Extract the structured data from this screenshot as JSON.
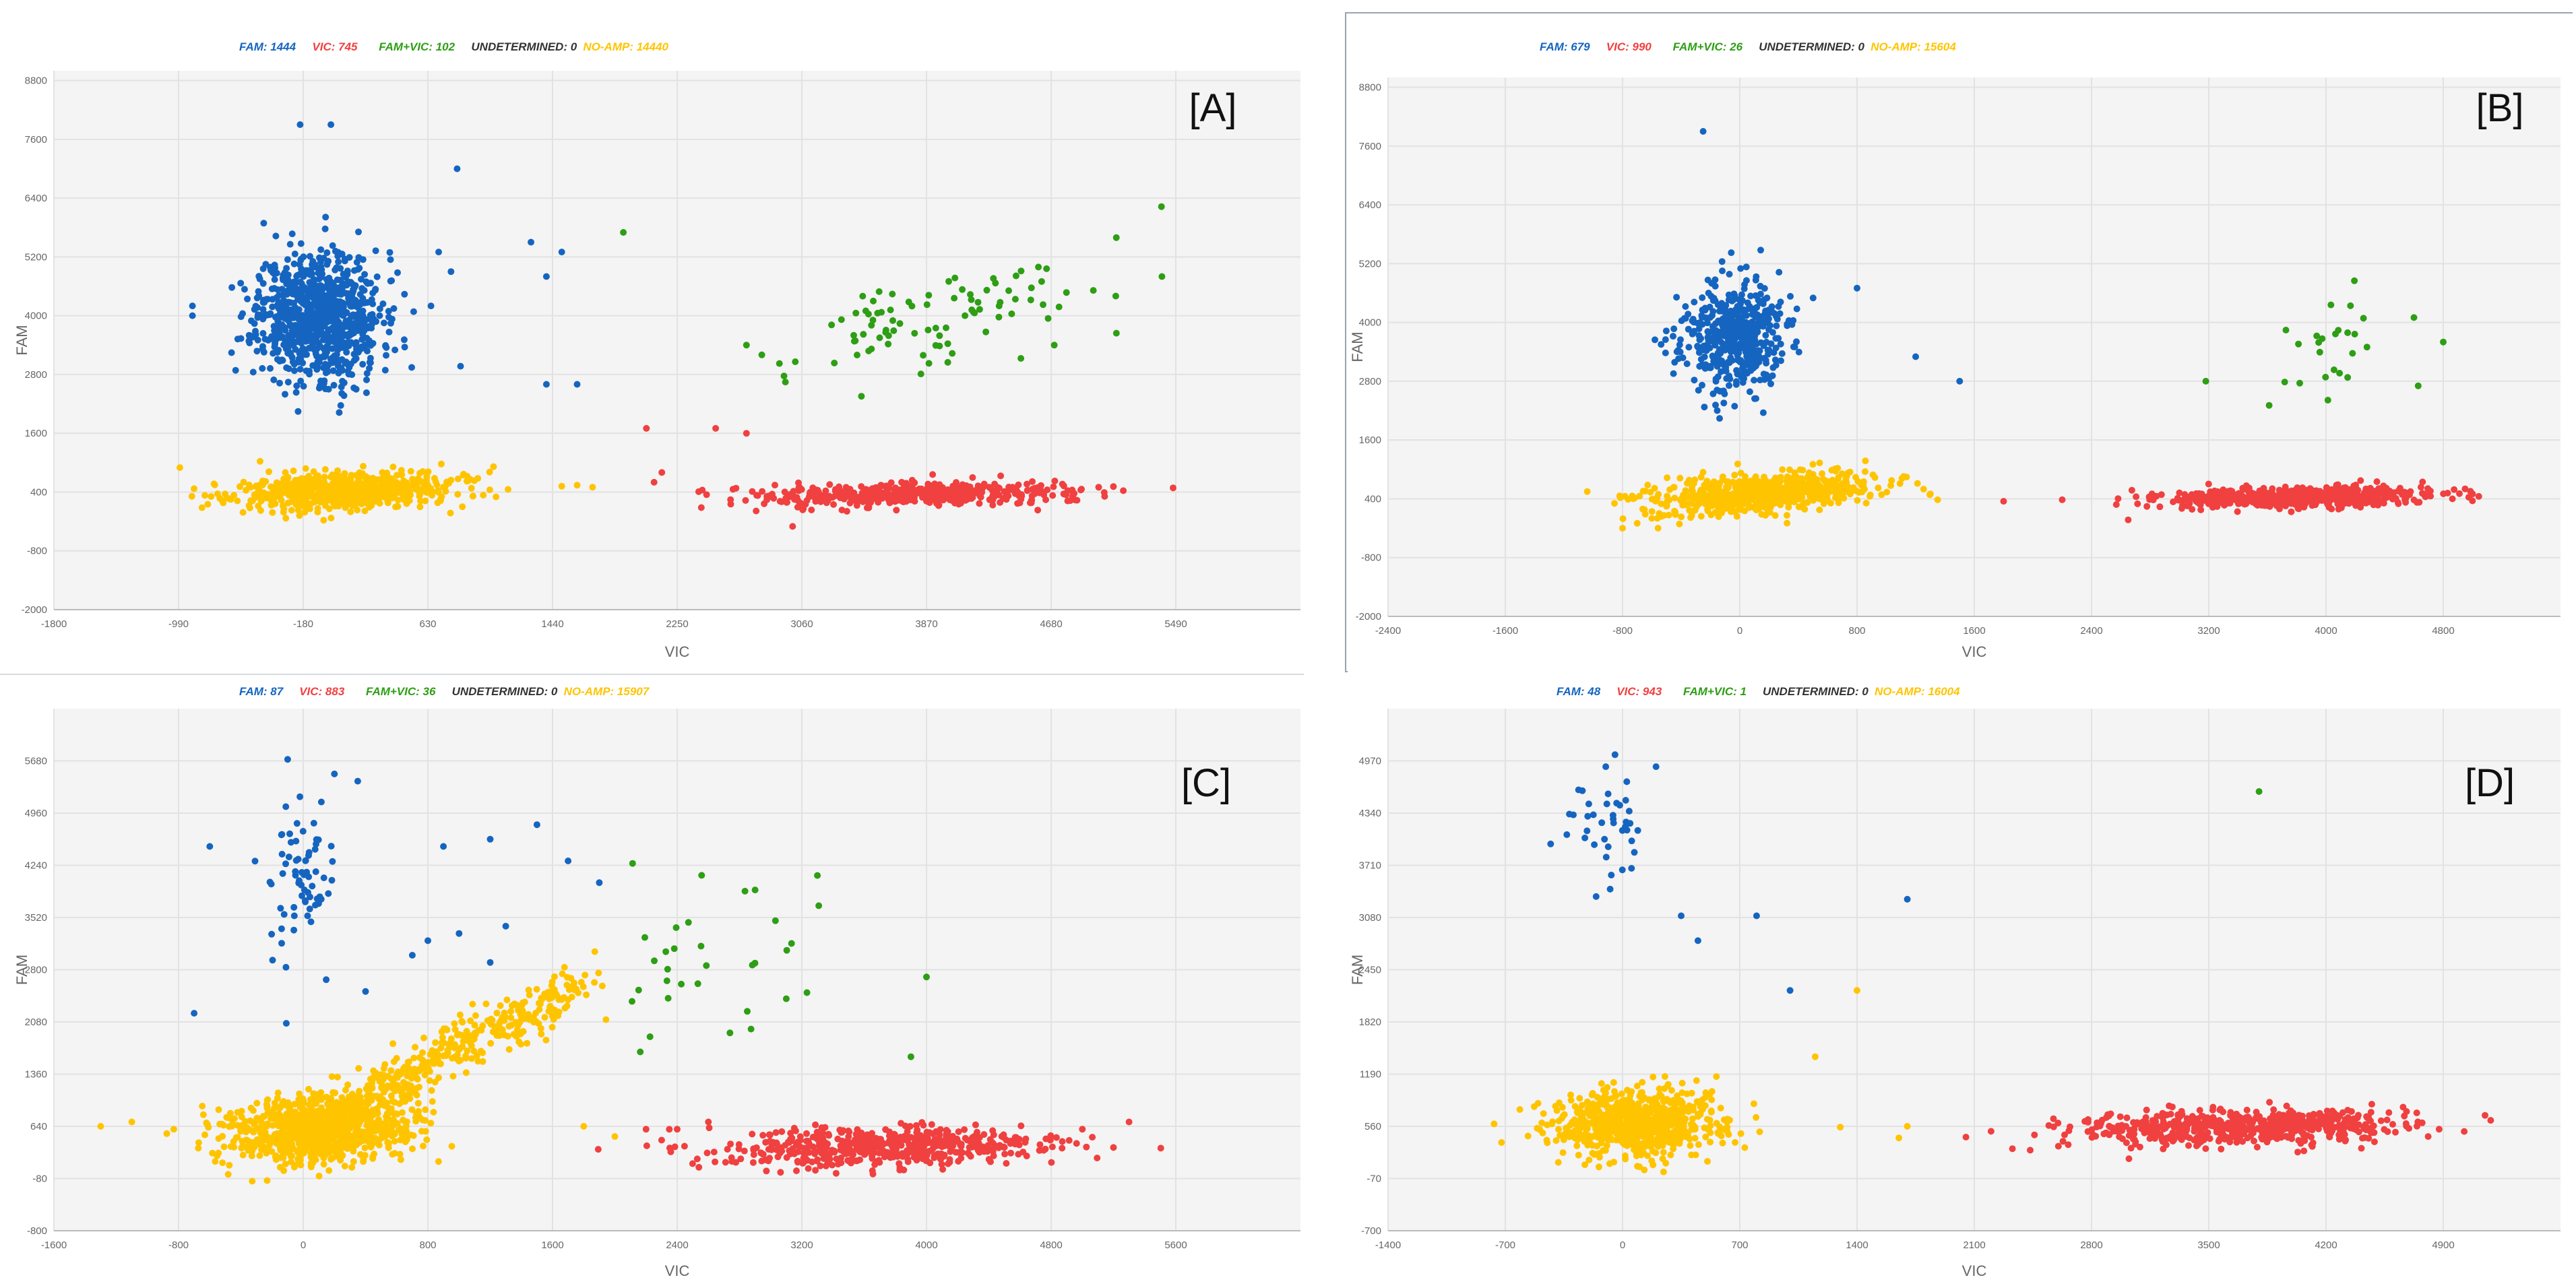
{
  "colors": {
    "fam": "#1565c0",
    "vic": "#f04040",
    "famvic": "#2e9e15",
    "undetermined": "#333333",
    "noamp": "#ffc400",
    "plot_bg": "#f4f4f4",
    "grid": "#e2e2e2"
  },
  "chart_data": [
    {
      "type": "scatter",
      "panel_label": "[A]",
      "legend": [
        {
          "label": "FAM: 1444",
          "key": "fam"
        },
        {
          "label": "VIC: 745",
          "key": "vic"
        },
        {
          "label": "FAM+VIC: 102",
          "key": "famvic"
        },
        {
          "label": "UNDETERMINED: 0",
          "key": "undetermined"
        },
        {
          "label": "NO-AMP: 14440",
          "key": "noamp"
        }
      ],
      "xlabel": "VIC",
      "ylabel": "FAM",
      "xlim": [
        -1800,
        6300
      ],
      "ylim": [
        -2000,
        9000
      ],
      "xticks": [
        -1800,
        -990,
        -180,
        630,
        1440,
        2250,
        3060,
        3870,
        4680,
        5490
      ],
      "yticks": [
        -2000,
        -800,
        400,
        1600,
        2800,
        4000,
        5200,
        6400,
        7600,
        8800
      ],
      "clusters": [
        {
          "key": "fam",
          "n": 900,
          "cx": -80,
          "cy": 4000,
          "sx": 200,
          "sy": 650,
          "tilt": 0
        },
        {
          "key": "noamp",
          "n": 700,
          "cx": 100,
          "cy": 420,
          "sx": 350,
          "sy": 180,
          "tilt": 0.12
        },
        {
          "key": "vic",
          "n": 500,
          "cx": 3800,
          "cy": 350,
          "sx": 520,
          "sy": 120,
          "tilt": 0.04
        },
        {
          "key": "famvic",
          "n": 90,
          "cx": 3900,
          "cy": 3900,
          "sx": 520,
          "sy": 500,
          "tilt": 0.6
        }
      ],
      "outliers": [
        {
          "key": "fam",
          "points": [
            [
              -900,
              4000
            ],
            [
              -900,
              4200
            ],
            [
              -200,
              7900
            ],
            [
              0,
              7900
            ],
            [
              820,
              7000
            ],
            [
              1300,
              5500
            ],
            [
              1400,
              4800
            ],
            [
              1500,
              5300
            ],
            [
              1400,
              2600
            ],
            [
              1600,
              2600
            ],
            [
              700,
              5300
            ],
            [
              780,
              4900
            ],
            [
              650,
              4200
            ]
          ]
        },
        {
          "key": "famvic",
          "points": [
            [
              1900,
              5700
            ],
            [
              2700,
              3400
            ],
            [
              2800,
              3200
            ],
            [
              5100,
              4400
            ],
            [
              5400,
              4800
            ],
            [
              4700,
              3400
            ]
          ]
        },
        {
          "key": "vic",
          "points": [
            [
              2050,
              1700
            ],
            [
              2500,
              1700
            ],
            [
              2700,
              1600
            ],
            [
              2150,
              800
            ],
            [
              2100,
              600
            ],
            [
              3000,
              -300
            ]
          ]
        },
        {
          "key": "noamp",
          "points": [
            [
              -700,
              180
            ],
            [
              -800,
              150
            ],
            [
              1500,
              520
            ],
            [
              1600,
              540
            ],
            [
              1700,
              500
            ]
          ]
        }
      ]
    },
    {
      "type": "scatter",
      "panel_label": "[B]",
      "legend": [
        {
          "label": "FAM: 679",
          "key": "fam"
        },
        {
          "label": "VIC: 990",
          "key": "vic"
        },
        {
          "label": "FAM+VIC: 26",
          "key": "famvic"
        },
        {
          "label": "UNDETERMINED: 0",
          "key": "undetermined"
        },
        {
          "label": "NO-AMP: 15604",
          "key": "noamp"
        }
      ],
      "xlabel": "VIC",
      "ylabel": "FAM",
      "xlim": [
        -2400,
        5600
      ],
      "ylim": [
        -2000,
        9000
      ],
      "xticks": [
        -2400,
        -1600,
        -800,
        0,
        800,
        1600,
        2400,
        3200,
        4000,
        4800
      ],
      "yticks": [
        -2000,
        -800,
        400,
        1600,
        2800,
        4000,
        5200,
        6400,
        7600,
        8800
      ],
      "clusters": [
        {
          "key": "fam",
          "n": 500,
          "cx": -50,
          "cy": 3700,
          "sx": 180,
          "sy": 560,
          "tilt": 0
        },
        {
          "key": "noamp",
          "n": 650,
          "cx": 150,
          "cy": 500,
          "sx": 380,
          "sy": 200,
          "tilt": 0.22
        },
        {
          "key": "vic",
          "n": 650,
          "cx": 3800,
          "cy": 430,
          "sx": 450,
          "sy": 90,
          "tilt": 0.05
        },
        {
          "key": "famvic",
          "n": 26,
          "cx": 3950,
          "cy": 3300,
          "sx": 350,
          "sy": 600,
          "tilt": 0.5
        }
      ],
      "outliers": [
        {
          "key": "fam",
          "points": [
            [
              -250,
              7900
            ],
            [
              1500,
              2800
            ],
            [
              1200,
              3300
            ],
            [
              800,
              4700
            ],
            [
              500,
              4500
            ]
          ]
        },
        {
          "key": "noamp",
          "points": [
            [
              -800,
              -200
            ],
            [
              -700,
              -100
            ],
            [
              -600,
              0
            ],
            [
              -550,
              100
            ],
            [
              1300,
              500
            ],
            [
              1350,
              380
            ]
          ]
        },
        {
          "key": "vic",
          "points": [
            [
              1800,
              350
            ],
            [
              2200,
              380
            ],
            [
              2650,
              -30
            ],
            [
              5000,
              500
            ]
          ]
        },
        {
          "key": "famvic",
          "points": [
            [
              4600,
              4100
            ],
            [
              4800,
              3600
            ]
          ]
        }
      ]
    },
    {
      "type": "scatter",
      "panel_label": "[C]",
      "legend": [
        {
          "label": "FAM: 87",
          "key": "fam"
        },
        {
          "label": "VIC: 883",
          "key": "vic"
        },
        {
          "label": "FAM+VIC: 36",
          "key": "famvic"
        },
        {
          "label": "UNDETERMINED: 0",
          "key": "undetermined"
        },
        {
          "label": "NO-AMP: 15907",
          "key": "noamp"
        }
      ],
      "xlabel": "VIC",
      "ylabel": "FAM",
      "xlim": [
        -1600,
        6400
      ],
      "ylim": [
        -800,
        6400
      ],
      "xticks": [
        -1600,
        -800,
        0,
        800,
        1600,
        2400,
        3200,
        4000,
        4800,
        5600
      ],
      "yticks": [
        -800,
        -80,
        640,
        1360,
        2080,
        2800,
        3520,
        4240,
        4960,
        5680
      ],
      "clusters": [
        {
          "key": "noamp",
          "n": 800,
          "cx": 100,
          "cy": 600,
          "sx": 300,
          "sy": 230,
          "tilt": 0.1
        },
        {
          "key": "noamp",
          "n": 450,
          "cx": 900,
          "cy": 1600,
          "sx": 450,
          "sy": 150,
          "tilt": 1.15,
          "diag": true
        },
        {
          "key": "vic",
          "n": 550,
          "cx": 3700,
          "cy": 350,
          "sx": 520,
          "sy": 130,
          "tilt": 0.05
        },
        {
          "key": "fam",
          "n": 70,
          "cx": 0,
          "cy": 3900,
          "sx": 110,
          "sy": 500,
          "tilt": 0
        },
        {
          "key": "famvic",
          "n": 30,
          "cx": 2600,
          "cy": 2800,
          "sx": 500,
          "sy": 600,
          "tilt": 0
        }
      ],
      "outliers": [
        {
          "key": "fam",
          "points": [
            [
              -100,
              5700
            ],
            [
              200,
              5500
            ],
            [
              350,
              5400
            ],
            [
              -600,
              4500
            ],
            [
              -700,
              2200
            ],
            [
              900,
              4500
            ],
            [
              1200,
              4600
            ],
            [
              1500,
              4800
            ],
            [
              1700,
              4300
            ],
            [
              1900,
              4000
            ],
            [
              800,
              3200
            ],
            [
              1000,
              3300
            ],
            [
              1300,
              3400
            ],
            [
              1200,
              2900
            ],
            [
              700,
              3000
            ],
            [
              400,
              2500
            ]
          ]
        },
        {
          "key": "famvic",
          "points": [
            [
              3300,
              4100
            ],
            [
              4000,
              2700
            ],
            [
              3900,
              1600
            ],
            [
              2900,
              3900
            ],
            [
              3100,
              2400
            ]
          ]
        },
        {
          "key": "vic",
          "points": [
            [
              2200,
              600
            ],
            [
              2400,
              600
            ],
            [
              2600,
              700
            ],
            [
              2300,
              450
            ],
            [
              5000,
              600
            ],
            [
              5300,
              700
            ]
          ]
        },
        {
          "key": "noamp",
          "points": [
            [
              -1300,
              640
            ],
            [
              -1100,
              700
            ],
            [
              1800,
              640
            ],
            [
              2000,
              500
            ]
          ]
        }
      ]
    },
    {
      "type": "scatter",
      "panel_label": "[D]",
      "legend": [
        {
          "label": "FAM: 48",
          "key": "fam"
        },
        {
          "label": "VIC: 943",
          "key": "vic"
        },
        {
          "label": "FAM+VIC: 1",
          "key": "famvic"
        },
        {
          "label": "UNDETERMINED: 0",
          "key": "undetermined"
        },
        {
          "label": "NO-AMP: 16004",
          "key": "noamp"
        }
      ],
      "xlabel": "VIC",
      "ylabel": "FAM",
      "xlim": [
        -1400,
        5600
      ],
      "ylim": [
        -700,
        5600
      ],
      "xticks": [
        -1400,
        -700,
        0,
        700,
        1400,
        2100,
        2800,
        3500,
        4200,
        4900
      ],
      "yticks": [
        -700,
        -70,
        560,
        1190,
        1820,
        2450,
        3080,
        3710,
        4340,
        4970
      ],
      "clusters": [
        {
          "key": "noamp",
          "n": 800,
          "cx": 100,
          "cy": 600,
          "sx": 250,
          "sy": 200,
          "tilt": 0.08
        },
        {
          "key": "vic",
          "n": 650,
          "cx": 3700,
          "cy": 550,
          "sx": 480,
          "sy": 100,
          "tilt": 0.05
        },
        {
          "key": "fam",
          "n": 40,
          "cx": -100,
          "cy": 4200,
          "sx": 120,
          "sy": 350,
          "tilt": 0
        }
      ],
      "outliers": [
        {
          "key": "fam",
          "points": [
            [
              200,
              4900
            ],
            [
              -100,
              4900
            ],
            [
              350,
              3100
            ],
            [
              450,
              2800
            ],
            [
              1000,
              2200
            ],
            [
              1700,
              3300
            ],
            [
              800,
              3100
            ]
          ]
        },
        {
          "key": "famvic",
          "points": [
            [
              3800,
              4600
            ]
          ]
        },
        {
          "key": "noamp",
          "points": [
            [
              1400,
              2200
            ],
            [
              1150,
              1400
            ],
            [
              1300,
              550
            ],
            [
              1700,
              560
            ],
            [
              1650,
              420
            ]
          ]
        },
        {
          "key": "vic",
          "points": [
            [
              2050,
              430
            ],
            [
              2200,
              500
            ],
            [
              2600,
              600
            ]
          ]
        }
      ]
    }
  ]
}
